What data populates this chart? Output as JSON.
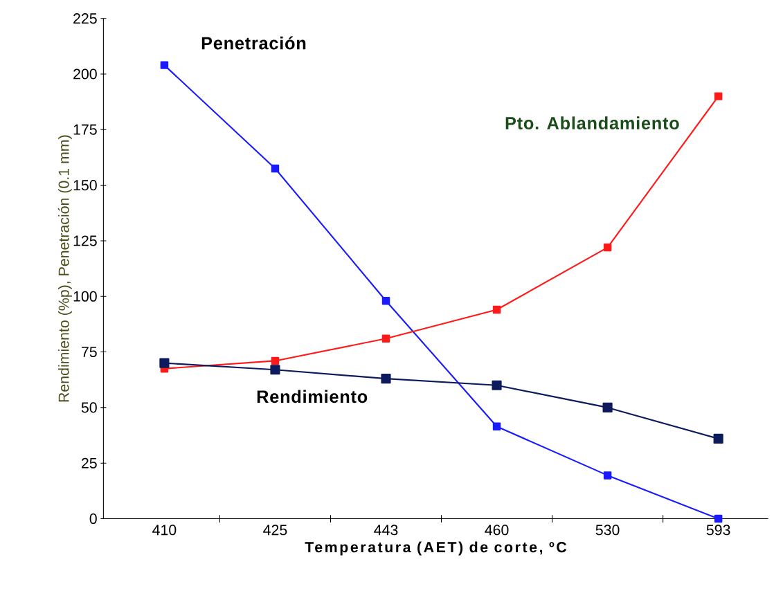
{
  "chart_data": {
    "type": "line",
    "xlabel": "Temperatura (AET) de corte, ºC",
    "ylabel": "Rendimiento (%p), Penetración (0.1 mm)",
    "categories": [
      "410",
      "425",
      "443",
      "460",
      "530",
      "593"
    ],
    "series": [
      {
        "name": "Penetración",
        "color": "#1a1aff",
        "values": [
          204,
          157.5,
          98,
          41.5,
          19.5,
          0
        ]
      },
      {
        "name": "Pto. Ablandamiento",
        "color": "#ff1a1a",
        "values": [
          67.5,
          71,
          81,
          94,
          122,
          190
        ]
      },
      {
        "name": "Rendimiento",
        "color": "#0d1a5c",
        "values": [
          70,
          67,
          63,
          60,
          50,
          36
        ]
      }
    ],
    "ylim": [
      0,
      225
    ],
    "yticks": [
      0,
      25,
      50,
      75,
      100,
      125,
      150,
      175,
      200,
      225
    ],
    "marker": "square",
    "line_style": "solid",
    "grid": false,
    "legend": false
  }
}
